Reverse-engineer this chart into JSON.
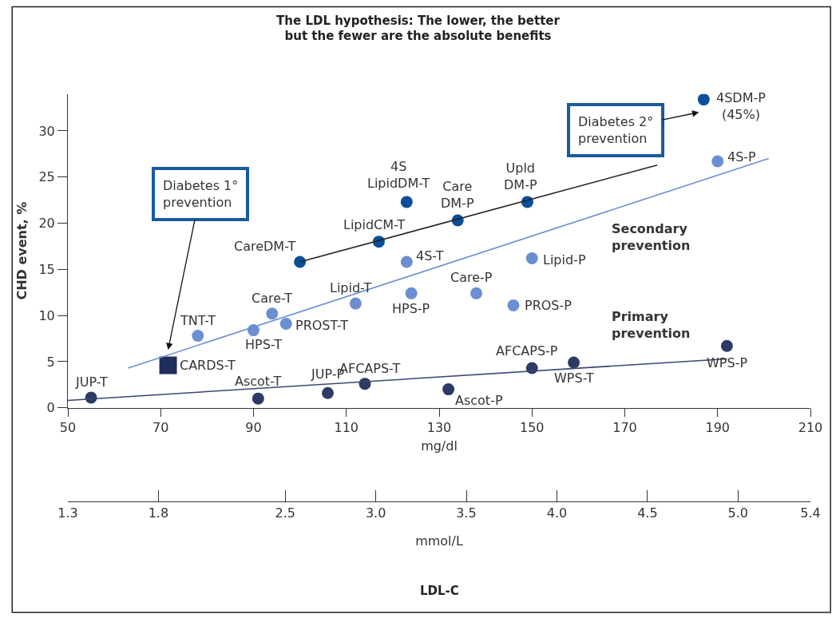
{
  "chart_data": {
    "type": "scatter",
    "title": "The LDL hypothesis: The lower, the better\nbut the fewer are the absolute benefits",
    "xlabel": "mg/dl",
    "ylabel": "CHD event, %",
    "x2label": "mmol/L",
    "xlim": [
      50,
      210
    ],
    "xticks": [
      50,
      70,
      90,
      110,
      130,
      150,
      170,
      190,
      210
    ],
    "ylim": [
      0,
      34
    ],
    "yticks": [
      0,
      5,
      10,
      15,
      20,
      25,
      30
    ],
    "x2lim": [
      1.3,
      5.4
    ],
    "x2ticks": [
      {
        "value": 1.3,
        "label": "1.3"
      },
      {
        "value": 1.8,
        "label": "1.8"
      },
      {
        "value": 2.5,
        "label": "2.5"
      },
      {
        "value": 3.0,
        "label": "3.0"
      },
      {
        "value": 3.5,
        "label": "3.5"
      },
      {
        "value": 4.0,
        "label": "4.0"
      },
      {
        "value": 4.5,
        "label": "4.5"
      },
      {
        "value": 5.0,
        "label": "5.0"
      },
      {
        "value": 5.4,
        "label": "5.4"
      }
    ],
    "marker": "circle",
    "series": [
      {
        "color": "#0a4f9a",
        "x": [
          100,
          117,
          123,
          134,
          149,
          187
        ],
        "values": [
          15.8,
          18,
          22.3,
          20.3,
          22.3,
          33.4
        ]
      },
      {
        "color": "#6b8fd0",
        "x": [
          78,
          94,
          90,
          97,
          112,
          123,
          124,
          138,
          146,
          150,
          190
        ],
        "values": [
          7.8,
          10.2,
          8.4,
          9.1,
          11.3,
          15.8,
          12.4,
          12.4,
          11.1,
          16.2,
          26.7
        ]
      },
      {
        "color": "#2e3a66",
        "x": [
          55,
          91,
          106,
          114,
          132,
          150,
          159,
          192
        ],
        "values": [
          1.1,
          1.0,
          1.6,
          2.6,
          2.0,
          4.3,
          4.9,
          6.7
        ]
      },
      {
        "color": "#1f2d5c",
        "marker": "square",
        "x": [
          71.6
        ],
        "values": [
          4.6
        ]
      },
      {
        "type": "line",
        "marker": "none",
        "color": "#222222",
        "x": [
          100,
          177
        ],
        "values": [
          15.8,
          26.3
        ]
      },
      {
        "type": "line",
        "marker": "none",
        "color": "#6b8fd0",
        "x": [
          63,
          201
        ],
        "values": [
          4.3,
          27.0
        ]
      },
      {
        "type": "line",
        "marker": "none",
        "color": "#3a4770",
        "x": [
          50,
          192
        ],
        "values": [
          0.8,
          5.3
        ]
      }
    ],
    "annotations": [
      {
        "text": "CareDM-T",
        "x": 100,
        "y": 15.8
      },
      {
        "text": "LipidCM-T",
        "x": 117,
        "y": 18
      },
      {
        "text": "4S\nLipidDM-T",
        "x": 123,
        "y": 22.3
      },
      {
        "text": "Care\nDM-P",
        "x": 134,
        "y": 20.3
      },
      {
        "text": "Upld\nDM-P",
        "x": 149,
        "y": 22.3
      },
      {
        "text": "4SDM-P\n(45%)",
        "x": 187,
        "y": 33.4
      },
      {
        "text": "TNT-T",
        "x": 78,
        "y": 7.8
      },
      {
        "text": "Care-T",
        "x": 94,
        "y": 10.2
      },
      {
        "text": "HPS-T",
        "x": 90,
        "y": 8.4
      },
      {
        "text": "PROST-T",
        "x": 97,
        "y": 9.1
      },
      {
        "text": "Lipid-T",
        "x": 112,
        "y": 11.3
      },
      {
        "text": "4S-T",
        "x": 123,
        "y": 15.8
      },
      {
        "text": "HPS-P",
        "x": 124,
        "y": 12.4
      },
      {
        "text": "Care-P",
        "x": 138,
        "y": 12.4
      },
      {
        "text": "PROS-P",
        "x": 146,
        "y": 11.1
      },
      {
        "text": "Lipid-P",
        "x": 150,
        "y": 16.2
      },
      {
        "text": "4S-P",
        "x": 190,
        "y": 26.7
      },
      {
        "text": "JUP-T",
        "x": 55,
        "y": 1.1
      },
      {
        "text": "Ascot-T",
        "x": 91,
        "y": 1.0
      },
      {
        "text": "JUP-P",
        "x": 106,
        "y": 1.6
      },
      {
        "text": "AFCAPS-T",
        "x": 114,
        "y": 2.6
      },
      {
        "text": "Ascot-P",
        "x": 132,
        "y": 2.0
      },
      {
        "text": "AFCAPS-P",
        "x": 150,
        "y": 4.3
      },
      {
        "text": "WPS-T",
        "x": 159,
        "y": 4.9
      },
      {
        "text": "WPS-P",
        "x": 192,
        "y": 6.7
      },
      {
        "text": "CARDS-T",
        "x": 71.6,
        "y": 4.6
      },
      "Secondary\nprevention",
      "Primary\nprevention",
      "Diabetes 1°\nprevention",
      "Diabetes 2°\nprevention",
      "LDL-C"
    ]
  }
}
